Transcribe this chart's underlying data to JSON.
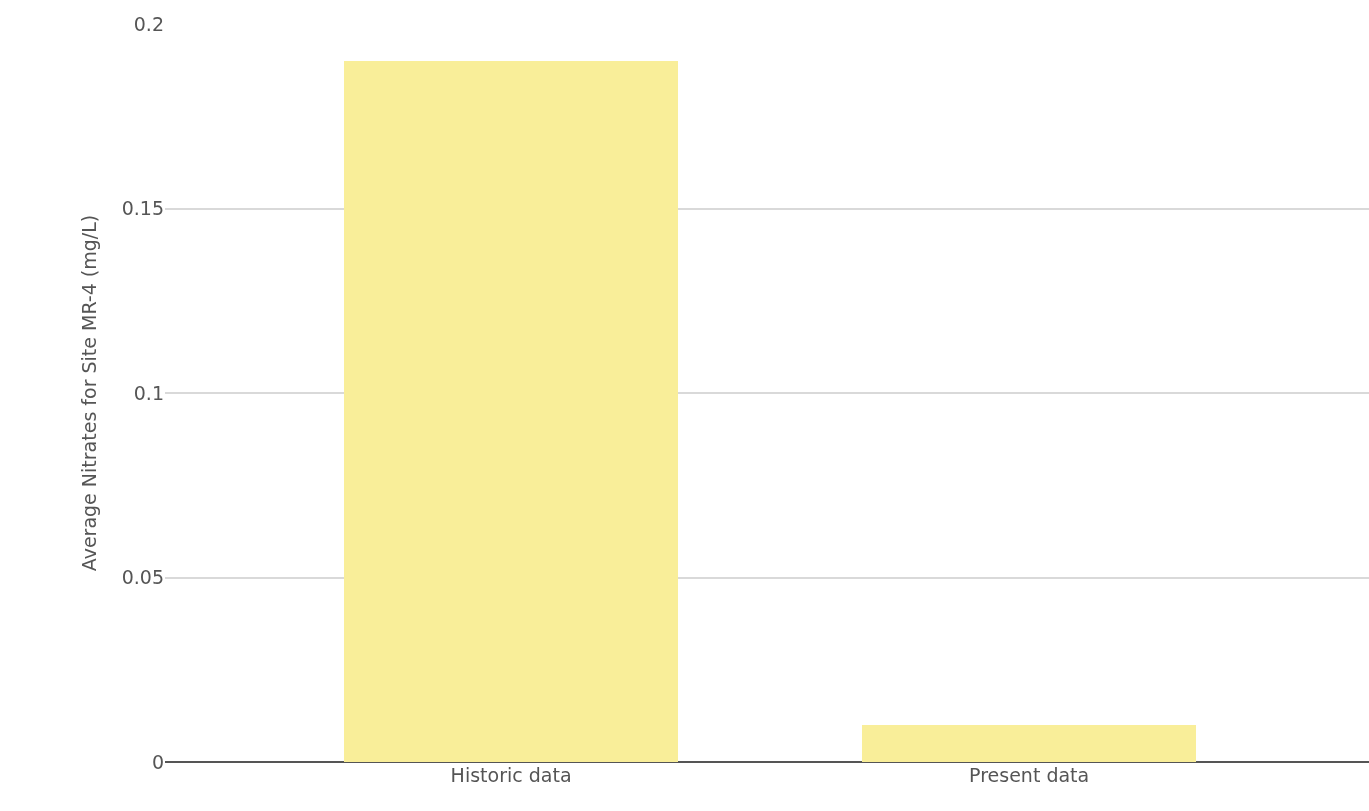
{
  "chart_data": {
    "type": "bar",
    "ylabel": "Average Nitrates for Site MR-4 (mg/L)",
    "categories": [
      "Historic data",
      "Present data"
    ],
    "values": [
      0.19,
      0.01
    ],
    "color": "#f9ee99",
    "ylim": [
      0,
      0.2
    ],
    "yticks": [
      0,
      0.05,
      0.1,
      0.15,
      0.2
    ],
    "grid": "y"
  }
}
